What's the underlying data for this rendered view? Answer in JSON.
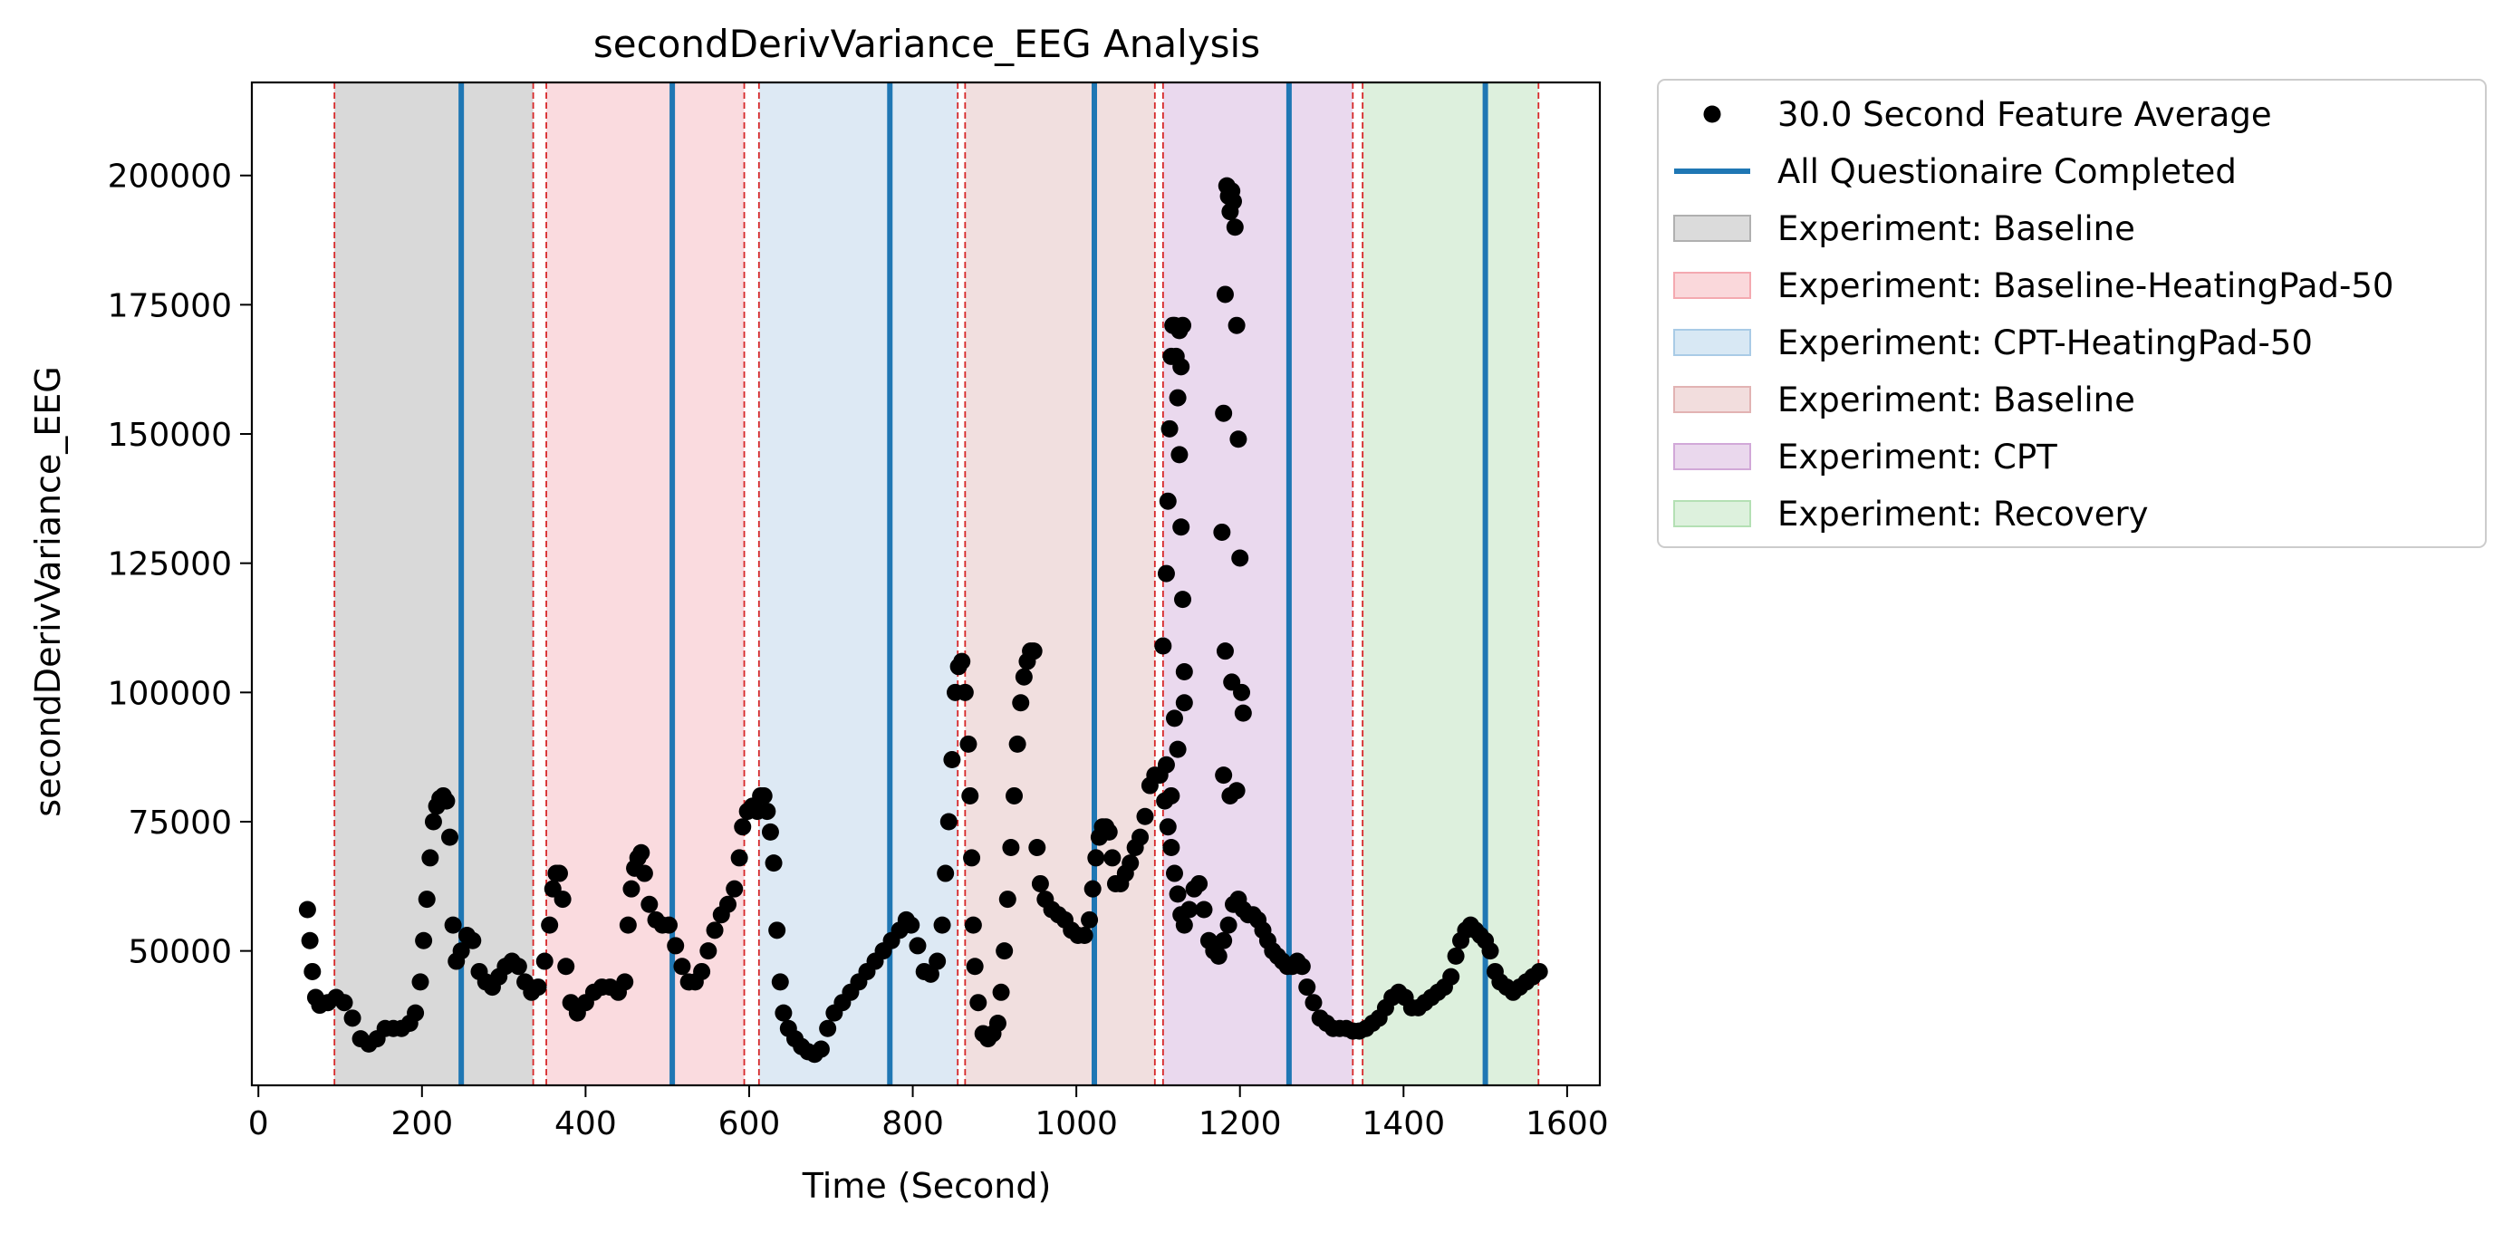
{
  "chart_data": {
    "type": "scatter",
    "title": "secondDerivVariance_EEG Analysis",
    "xlabel": "Time (Second)",
    "ylabel": "secondDerivVariance_EEG",
    "xlim": [
      -8,
      1640
    ],
    "ylim": [
      24000,
      218000
    ],
    "xticks": [
      0,
      200,
      400,
      600,
      800,
      1000,
      1200,
      1400,
      1600
    ],
    "yticks": [
      50000,
      75000,
      100000,
      125000,
      150000,
      175000,
      200000
    ],
    "grid": false,
    "legend_position": "outside-right",
    "legend": [
      {
        "label": "30.0 Second Feature Average",
        "kind": "marker",
        "color": "#000000"
      },
      {
        "label": "All Questionaire Completed",
        "kind": "line",
        "color": "#1f77b4"
      },
      {
        "label": "Experiment: Baseline",
        "kind": "patch",
        "color": "#b0b0b0"
      },
      {
        "label": "Experiment: Baseline-HeatingPad-50",
        "kind": "patch",
        "color": "#f4a9b0"
      },
      {
        "label": "Experiment: CPT-HeatingPad-50",
        "kind": "patch",
        "color": "#a9cbe6"
      },
      {
        "label": "Experiment: Baseline",
        "kind": "patch",
        "color": "#e2b3b3"
      },
      {
        "label": "Experiment: CPT",
        "kind": "patch",
        "color": "#d1a8d8"
      },
      {
        "label": "Experiment: Recovery",
        "kind": "patch",
        "color": "#b4e0b4"
      }
    ],
    "regions": [
      {
        "name": "Experiment: Baseline",
        "x0": 93,
        "x1": 336,
        "color": "#d9d9d9"
      },
      {
        "name": "Experiment: Baseline-HeatingPad-50",
        "x0": 352,
        "x1": 594,
        "color": "#fadbdf"
      },
      {
        "name": "Experiment: CPT-HeatingPad-50",
        "x0": 612,
        "x1": 855,
        "color": "#dde9f4"
      },
      {
        "name": "Experiment: Baseline",
        "x0": 864,
        "x1": 1096,
        "color": "#f1dfdf"
      },
      {
        "name": "Experiment: CPT",
        "x0": 1106,
        "x1": 1338,
        "color": "#ead9ee"
      },
      {
        "name": "Experiment: Recovery",
        "x0": 1350,
        "x1": 1565,
        "color": "#ddf0dd"
      }
    ],
    "boundaries": [
      93,
      336,
      352,
      594,
      612,
      855,
      864,
      1096,
      1106,
      1338,
      1350,
      1565
    ],
    "boundary_color": "#d62728",
    "questionnaire_completed": [
      248,
      506,
      772,
      1022,
      1260,
      1500
    ],
    "questionnaire_color": "#1f77b4",
    "series": [
      {
        "name": "30.0 Second Feature Average",
        "color": "#000000",
        "points": [
          [
            60,
            58000
          ],
          [
            63,
            52000
          ],
          [
            66,
            46000
          ],
          [
            70,
            41000
          ],
          [
            75,
            39500
          ],
          [
            85,
            40000
          ],
          [
            95,
            41000
          ],
          [
            105,
            40000
          ],
          [
            115,
            37000
          ],
          [
            125,
            33000
          ],
          [
            135,
            32000
          ],
          [
            145,
            33000
          ],
          [
            155,
            35000
          ],
          [
            165,
            35000
          ],
          [
            175,
            35000
          ],
          [
            185,
            36000
          ],
          [
            192,
            38000
          ],
          [
            198,
            44000
          ],
          [
            202,
            52000
          ],
          [
            206,
            60000
          ],
          [
            210,
            68000
          ],
          [
            214,
            75000
          ],
          [
            218,
            78000
          ],
          [
            222,
            79500
          ],
          [
            226,
            80000
          ],
          [
            230,
            79000
          ],
          [
            234,
            72000
          ],
          [
            238,
            55000
          ],
          [
            242,
            48000
          ],
          [
            248,
            50000
          ],
          [
            255,
            53000
          ],
          [
            262,
            52000
          ],
          [
            270,
            46000
          ],
          [
            278,
            44000
          ],
          [
            286,
            43000
          ],
          [
            294,
            45000
          ],
          [
            302,
            47000
          ],
          [
            310,
            48000
          ],
          [
            318,
            47000
          ],
          [
            326,
            44000
          ],
          [
            334,
            42000
          ],
          [
            342,
            43000
          ],
          [
            350,
            48000
          ],
          [
            356,
            55000
          ],
          [
            360,
            62000
          ],
          [
            364,
            65000
          ],
          [
            368,
            65000
          ],
          [
            372,
            60000
          ],
          [
            376,
            47000
          ],
          [
            382,
            40000
          ],
          [
            390,
            38000
          ],
          [
            400,
            40000
          ],
          [
            410,
            42000
          ],
          [
            420,
            43000
          ],
          [
            430,
            43000
          ],
          [
            440,
            42000
          ],
          [
            448,
            44000
          ],
          [
            452,
            55000
          ],
          [
            456,
            62000
          ],
          [
            460,
            66000
          ],
          [
            464,
            68000
          ],
          [
            468,
            69000
          ],
          [
            472,
            65000
          ],
          [
            478,
            59000
          ],
          [
            486,
            56000
          ],
          [
            494,
            55000
          ],
          [
            502,
            55000
          ],
          [
            510,
            51000
          ],
          [
            518,
            47000
          ],
          [
            526,
            44000
          ],
          [
            534,
            44000
          ],
          [
            542,
            46000
          ],
          [
            550,
            50000
          ],
          [
            558,
            54000
          ],
          [
            566,
            57000
          ],
          [
            574,
            59000
          ],
          [
            582,
            62000
          ],
          [
            588,
            68000
          ],
          [
            592,
            74000
          ],
          [
            598,
            77000
          ],
          [
            604,
            78000
          ],
          [
            610,
            77000
          ],
          [
            614,
            80000
          ],
          [
            618,
            80000
          ],
          [
            622,
            77000
          ],
          [
            626,
            73000
          ],
          [
            630,
            67000
          ],
          [
            634,
            54000
          ],
          [
            638,
            44000
          ],
          [
            642,
            38000
          ],
          [
            648,
            35000
          ],
          [
            656,
            33000
          ],
          [
            664,
            31500
          ],
          [
            672,
            30500
          ],
          [
            680,
            30000
          ],
          [
            688,
            31000
          ],
          [
            696,
            35000
          ],
          [
            704,
            38000
          ],
          [
            714,
            40000
          ],
          [
            724,
            42000
          ],
          [
            734,
            44000
          ],
          [
            744,
            46000
          ],
          [
            754,
            48000
          ],
          [
            764,
            50000
          ],
          [
            774,
            52000
          ],
          [
            784,
            54000
          ],
          [
            792,
            56000
          ],
          [
            798,
            55000
          ],
          [
            806,
            51000
          ],
          [
            814,
            46000
          ],
          [
            822,
            45500
          ],
          [
            830,
            48000
          ],
          [
            836,
            55000
          ],
          [
            840,
            65000
          ],
          [
            844,
            75000
          ],
          [
            848,
            87000
          ],
          [
            852,
            100000
          ],
          [
            856,
            105000
          ],
          [
            860,
            106000
          ],
          [
            864,
            100000
          ],
          [
            868,
            90000
          ],
          [
            870,
            80000
          ],
          [
            872,
            68000
          ],
          [
            874,
            55000
          ],
          [
            876,
            47000
          ],
          [
            880,
            40000
          ],
          [
            886,
            34000
          ],
          [
            892,
            33000
          ],
          [
            898,
            34000
          ],
          [
            904,
            36000
          ],
          [
            908,
            42000
          ],
          [
            912,
            50000
          ],
          [
            916,
            60000
          ],
          [
            920,
            70000
          ],
          [
            924,
            80000
          ],
          [
            928,
            90000
          ],
          [
            932,
            98000
          ],
          [
            936,
            103000
          ],
          [
            940,
            106000
          ],
          [
            944,
            108000
          ],
          [
            948,
            108000
          ],
          [
            952,
            70000
          ],
          [
            956,
            63000
          ],
          [
            962,
            60000
          ],
          [
            970,
            58000
          ],
          [
            978,
            57000
          ],
          [
            986,
            56000
          ],
          [
            994,
            54000
          ],
          [
            1002,
            53000
          ],
          [
            1010,
            53000
          ],
          [
            1016,
            56000
          ],
          [
            1020,
            62000
          ],
          [
            1024,
            68000
          ],
          [
            1028,
            72000
          ],
          [
            1032,
            74000
          ],
          [
            1036,
            74000
          ],
          [
            1040,
            73000
          ],
          [
            1044,
            68000
          ],
          [
            1048,
            63000
          ],
          [
            1054,
            63000
          ],
          [
            1060,
            65000
          ],
          [
            1066,
            67000
          ],
          [
            1072,
            70000
          ],
          [
            1078,
            72000
          ],
          [
            1084,
            76000
          ],
          [
            1090,
            82000
          ],
          [
            1096,
            84000
          ],
          [
            1102,
            84000
          ],
          [
            1108,
            79000
          ],
          [
            1112,
            74000
          ],
          [
            1116,
            70000
          ],
          [
            1120,
            65000
          ],
          [
            1124,
            61000
          ],
          [
            1128,
            57000
          ],
          [
            1132,
            55000
          ],
          [
            1138,
            58000
          ],
          [
            1144,
            62000
          ],
          [
            1150,
            63000
          ],
          [
            1156,
            58000
          ],
          [
            1162,
            52000
          ],
          [
            1168,
            50000
          ],
          [
            1174,
            49000
          ],
          [
            1180,
            52000
          ],
          [
            1186,
            55000
          ],
          [
            1192,
            59000
          ],
          [
            1198,
            60000
          ],
          [
            1204,
            58000
          ],
          [
            1210,
            57000
          ],
          [
            1216,
            57000
          ],
          [
            1222,
            56000
          ],
          [
            1228,
            54000
          ],
          [
            1234,
            52000
          ],
          [
            1240,
            50000
          ],
          [
            1246,
            49000
          ],
          [
            1252,
            48000
          ],
          [
            1258,
            47000
          ],
          [
            1264,
            47000
          ],
          [
            1270,
            48000
          ],
          [
            1276,
            47000
          ],
          [
            1282,
            43000
          ],
          [
            1290,
            40000
          ],
          [
            1298,
            37000
          ],
          [
            1306,
            36000
          ],
          [
            1314,
            35000
          ],
          [
            1322,
            35000
          ],
          [
            1330,
            35000
          ],
          [
            1338,
            34500
          ],
          [
            1346,
            34500
          ],
          [
            1354,
            35000
          ],
          [
            1362,
            36000
          ],
          [
            1370,
            37000
          ],
          [
            1378,
            39000
          ],
          [
            1386,
            41000
          ],
          [
            1394,
            42000
          ],
          [
            1402,
            41000
          ],
          [
            1410,
            39000
          ],
          [
            1418,
            39000
          ],
          [
            1426,
            40000
          ],
          [
            1434,
            41000
          ],
          [
            1442,
            42000
          ],
          [
            1450,
            43000
          ],
          [
            1458,
            45000
          ],
          [
            1464,
            49000
          ],
          [
            1470,
            52000
          ],
          [
            1476,
            54000
          ],
          [
            1482,
            55000
          ],
          [
            1488,
            54000
          ],
          [
            1494,
            53000
          ],
          [
            1500,
            52000
          ],
          [
            1506,
            50000
          ],
          [
            1512,
            46000
          ],
          [
            1518,
            44000
          ],
          [
            1526,
            43000
          ],
          [
            1534,
            42000
          ],
          [
            1542,
            43000
          ],
          [
            1550,
            44000
          ],
          [
            1558,
            45000
          ],
          [
            1566,
            46000
          ],
          [
            1106,
            109000
          ],
          [
            1110,
            123000
          ],
          [
            1112,
            137000
          ],
          [
            1114,
            151000
          ],
          [
            1116,
            165000
          ],
          [
            1118,
            171000
          ],
          [
            1120,
            171000
          ],
          [
            1122,
            165000
          ],
          [
            1124,
            157000
          ],
          [
            1126,
            146000
          ],
          [
            1128,
            132000
          ],
          [
            1130,
            118000
          ],
          [
            1132,
            104000
          ],
          [
            1126,
            170000
          ],
          [
            1128,
            163000
          ],
          [
            1130,
            171000
          ],
          [
            1120,
            95000
          ],
          [
            1124,
            89000
          ],
          [
            1132,
            98000
          ],
          [
            1178,
            131000
          ],
          [
            1180,
            154000
          ],
          [
            1182,
            177000
          ],
          [
            1184,
            198000
          ],
          [
            1186,
            196000
          ],
          [
            1188,
            193000
          ],
          [
            1190,
            197000
          ],
          [
            1192,
            195000
          ],
          [
            1194,
            190000
          ],
          [
            1196,
            171000
          ],
          [
            1198,
            149000
          ],
          [
            1200,
            126000
          ],
          [
            1202,
            100000
          ],
          [
            1180,
            84000
          ],
          [
            1182,
            108000
          ],
          [
            1188,
            80000
          ],
          [
            1110,
            86000
          ],
          [
            1116,
            80000
          ],
          [
            1190,
            102000
          ],
          [
            1196,
            81000
          ],
          [
            1204,
            96000
          ]
        ]
      }
    ]
  }
}
